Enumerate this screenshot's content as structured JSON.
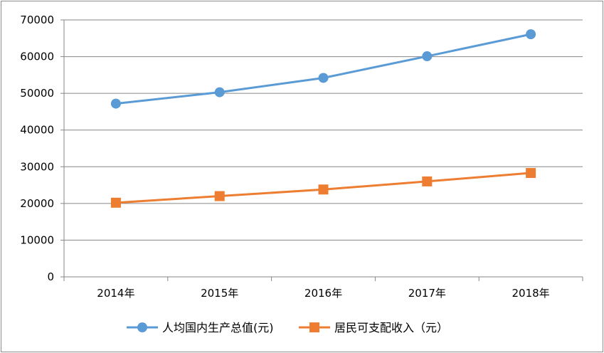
{
  "chart_data": {
    "type": "line",
    "title": "",
    "xlabel": "",
    "ylabel": "",
    "categories": [
      "2014年",
      "2015年",
      "2016年",
      "2017年",
      "2018年"
    ],
    "ylim": [
      0,
      70000
    ],
    "yticks": [
      0,
      10000,
      20000,
      30000,
      40000,
      50000,
      60000,
      70000
    ],
    "grid": "horizontal",
    "legend_position": "bottom",
    "series": [
      {
        "name": "人均国内生产总值(元)",
        "values": [
          47200,
          50300,
          54200,
          60100,
          66100
        ],
        "color": "#5b9bd5",
        "marker": "circle"
      },
      {
        "name": "居民可支配收入（元）",
        "values": [
          20200,
          22000,
          23800,
          26000,
          28300
        ],
        "color": "#ed7d31",
        "marker": "square"
      }
    ]
  }
}
